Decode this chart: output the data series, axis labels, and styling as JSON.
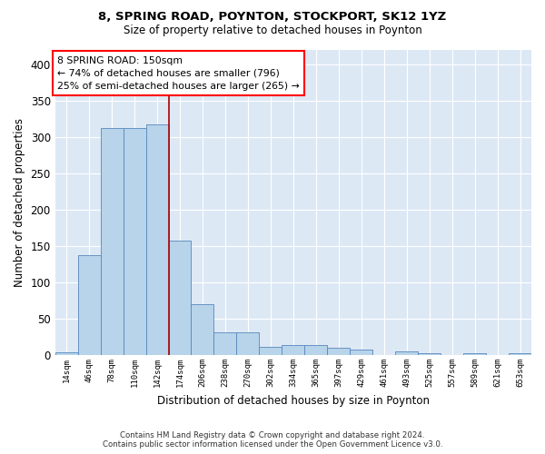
{
  "title": "8, SPRING ROAD, POYNTON, STOCKPORT, SK12 1YZ",
  "subtitle": "Size of property relative to detached houses in Poynton",
  "xlabel": "Distribution of detached houses by size in Poynton",
  "ylabel": "Number of detached properties",
  "footer_line1": "Contains HM Land Registry data © Crown copyright and database right 2024.",
  "footer_line2": "Contains public sector information licensed under the Open Government Licence v3.0.",
  "annotation_line1": "8 SPRING ROAD: 150sqm",
  "annotation_line2": "← 74% of detached houses are smaller (796)",
  "annotation_line3": "25% of semi-detached houses are larger (265) →",
  "bar_color": "#b8d4ea",
  "bar_edge_color": "#5588bb",
  "vline_color": "#aa0000",
  "categories": [
    "14sqm",
    "46sqm",
    "78sqm",
    "110sqm",
    "142sqm",
    "174sqm",
    "206sqm",
    "238sqm",
    "270sqm",
    "302sqm",
    "334sqm",
    "365sqm",
    "397sqm",
    "429sqm",
    "461sqm",
    "493sqm",
    "525sqm",
    "557sqm",
    "589sqm",
    "621sqm",
    "653sqm"
  ],
  "values": [
    4,
    137,
    312,
    313,
    318,
    157,
    70,
    32,
    32,
    11,
    14,
    14,
    10,
    8,
    0,
    5,
    3,
    0,
    3,
    0,
    3
  ],
  "vline_pos": 4.5,
  "ylim": [
    0,
    420
  ],
  "yticks": [
    0,
    50,
    100,
    150,
    200,
    250,
    300,
    350,
    400
  ],
  "figsize": [
    6.0,
    5.0
  ],
  "dpi": 100,
  "bg_color": "#ffffff",
  "plot_bg_color": "#dde8f5"
}
